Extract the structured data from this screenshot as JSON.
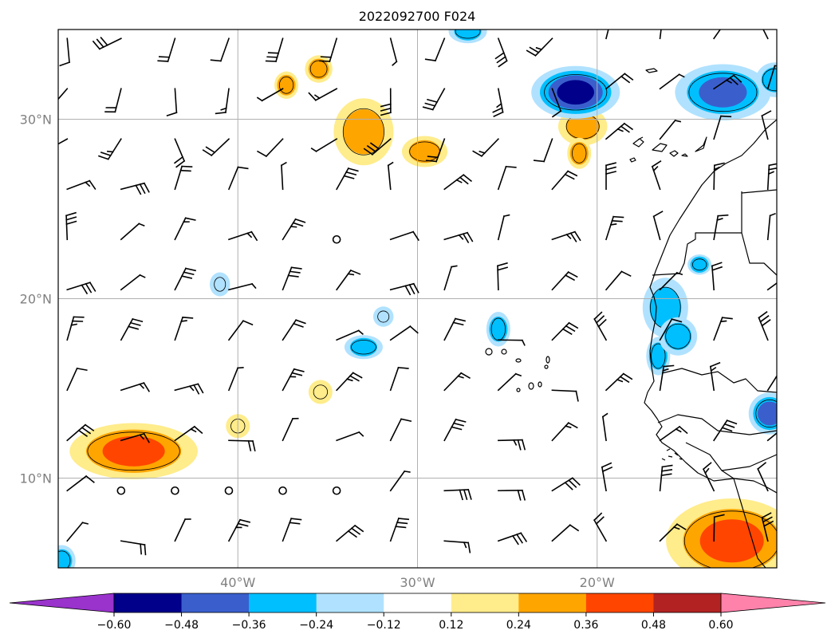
{
  "title": "2022092700 F024",
  "map": {
    "lon_range": [
      -50,
      -10
    ],
    "lat_range": [
      5,
      35
    ],
    "lat_ticks": [
      {
        "value": 30,
        "label": "30°N"
      },
      {
        "value": 20,
        "label": "20°N"
      },
      {
        "value": 10,
        "label": "10°N"
      }
    ],
    "lon_ticks": [
      {
        "value": -40,
        "label": "40°W"
      },
      {
        "value": -30,
        "label": "30°W"
      },
      {
        "value": -20,
        "label": "20°W"
      }
    ],
    "gridlines": true,
    "overlay": "wind barbs",
    "coastline_color": "#000000"
  },
  "colorbar": {
    "orientation": "horizontal",
    "extend": "both",
    "ticks": [
      "−0.60",
      "−0.48",
      "−0.36",
      "−0.24",
      "−0.12",
      "0.12",
      "0.24",
      "0.36",
      "0.48",
      "0.60"
    ],
    "colors": [
      "#9933cc",
      "#00008b",
      "#3a5fcd",
      "#00bfff",
      "#b0e2ff",
      "#ffffff",
      "#ffec8b",
      "#ffa500",
      "#ff4500",
      "#b22222",
      "#ff82ab"
    ]
  },
  "chart_data": {
    "type": "heatmap",
    "title": "2022092700 F024",
    "x_range_deg_lon": [
      -50,
      -10
    ],
    "y_range_deg_lat": [
      5,
      35
    ],
    "levels": [
      -0.6,
      -0.48,
      -0.36,
      -0.24,
      -0.12,
      0.12,
      0.24,
      0.36,
      0.48,
      0.6
    ],
    "blobs": [
      {
        "lon": -45.8,
        "lat": 11.5,
        "rx": 3.3,
        "ry": 1.3,
        "peak": 0.4
      },
      {
        "lon": -33.0,
        "lat": 29.3,
        "rx": 1.4,
        "ry": 1.6,
        "peak": 0.3
      },
      {
        "lon": -29.6,
        "lat": 28.2,
        "rx": 1.0,
        "ry": 0.6,
        "peak": 0.26
      },
      {
        "lon": -35.5,
        "lat": 32.8,
        "rx": 0.5,
        "ry": 0.5,
        "peak": 0.26
      },
      {
        "lon": -37.3,
        "lat": 31.9,
        "rx": 0.4,
        "ry": 0.5,
        "peak": 0.25
      },
      {
        "lon": -20.8,
        "lat": 29.6,
        "rx": 1.1,
        "ry": 0.8,
        "peak": 0.3
      },
      {
        "lon": -21.0,
        "lat": 28.1,
        "rx": 0.4,
        "ry": 0.6,
        "peak": 0.25
      },
      {
        "lon": -40.0,
        "lat": 12.9,
        "rx": 0.4,
        "ry": 0.4,
        "peak": 0.18
      },
      {
        "lon": -35.4,
        "lat": 14.8,
        "rx": 0.4,
        "ry": 0.4,
        "peak": 0.24
      },
      {
        "lon": -12.5,
        "lat": 6.5,
        "rx": 3.4,
        "ry": 2.1,
        "peak": 0.45
      },
      {
        "lon": -21.2,
        "lat": 31.5,
        "rx": 2.2,
        "ry": 1.2,
        "peak": -0.55
      },
      {
        "lon": -13.0,
        "lat": 31.5,
        "rx": 2.4,
        "ry": 1.3,
        "peak": -0.46
      },
      {
        "lon": -27.2,
        "lat": 34.9,
        "rx": 0.8,
        "ry": 0.4,
        "peak": -0.28
      },
      {
        "lon": -16.2,
        "lat": 19.5,
        "rx": 1.0,
        "ry": 1.4,
        "peak": -0.35
      },
      {
        "lon": -16.6,
        "lat": 16.8,
        "rx": 0.4,
        "ry": 0.8,
        "peak": -0.3
      },
      {
        "lon": -15.5,
        "lat": 17.9,
        "rx": 0.8,
        "ry": 0.8,
        "peak": -0.34
      },
      {
        "lon": -25.5,
        "lat": 18.3,
        "rx": 0.4,
        "ry": 0.7,
        "peak": -0.3
      },
      {
        "lon": -33.0,
        "lat": 17.3,
        "rx": 0.8,
        "ry": 0.4,
        "peak": -0.27
      },
      {
        "lon": -31.9,
        "lat": 19.0,
        "rx": 0.3,
        "ry": 0.3,
        "peak": -0.2
      },
      {
        "lon": -41.0,
        "lat": 20.8,
        "rx": 0.3,
        "ry": 0.4,
        "peak": -0.22
      },
      {
        "lon": -14.3,
        "lat": 21.9,
        "rx": 0.4,
        "ry": 0.3,
        "peak": -0.25
      },
      {
        "lon": -10.4,
        "lat": 13.6,
        "rx": 0.9,
        "ry": 0.9,
        "peak": -0.42
      },
      {
        "lon": -10.1,
        "lat": 32.2,
        "rx": 0.8,
        "ry": 0.7,
        "peak": -0.34
      },
      {
        "lon": -49.8,
        "lat": 5.4,
        "rx": 0.5,
        "ry": 0.6,
        "peak": -0.3
      }
    ],
    "barbs": {
      "rows_lat": [
        34.5,
        31.7,
        28.9,
        26.1,
        23.3,
        20.5,
        17.7,
        14.9,
        12.1,
        9.3,
        6.5
      ],
      "cols_lon": [
        -49.5,
        -46.5,
        -43.5,
        -40.5,
        -37.5,
        -34.5,
        -31.5,
        -28.5,
        -25.5,
        -22.5,
        -19.5,
        -16.5,
        -13.5,
        -10.5
      ],
      "calm_points": [
        [
          -34.5,
          23.3
        ],
        [
          -46.5,
          9.3
        ],
        [
          -43.5,
          9.3
        ],
        [
          -40.5,
          9.3
        ],
        [
          -37.5,
          9.3
        ],
        [
          -34.5,
          9.3
        ]
      ],
      "units": "knots"
    }
  }
}
